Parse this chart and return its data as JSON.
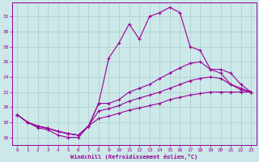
{
  "xlabel": "Windchill (Refroidissement éolien,°C)",
  "background_color": "#cce8e8",
  "grid_color": "#aacece",
  "line_color": "#990099",
  "xlim": [
    -0.5,
    23.5
  ],
  "ylim": [
    15.0,
    33.8
  ],
  "yticks": [
    16,
    18,
    20,
    22,
    24,
    26,
    28,
    30,
    32
  ],
  "xticks": [
    0,
    1,
    2,
    3,
    4,
    5,
    6,
    7,
    8,
    9,
    10,
    11,
    12,
    13,
    14,
    15,
    16,
    17,
    18,
    19,
    20,
    21,
    22,
    23
  ],
  "hours": [
    0,
    1,
    2,
    3,
    4,
    5,
    6,
    7,
    8,
    9,
    10,
    11,
    12,
    13,
    14,
    15,
    16,
    17,
    18,
    19,
    20,
    21,
    22,
    23
  ],
  "line1": [
    19.0,
    18.0,
    17.3,
    17.0,
    16.3,
    16.0,
    16.0,
    17.5,
    20.5,
    26.5,
    28.5,
    31.0,
    29.0,
    32.0,
    32.5,
    33.2,
    32.5,
    28.0,
    27.5,
    25.0,
    25.0,
    24.5,
    23.0,
    22.0
  ],
  "line2": [
    19.0,
    18.0,
    17.5,
    17.2,
    16.8,
    16.5,
    16.3,
    17.5,
    20.5,
    20.5,
    21.0,
    22.0,
    22.5,
    23.0,
    23.8,
    24.5,
    25.2,
    25.8,
    26.0,
    25.0,
    24.5,
    23.0,
    22.5,
    22.0
  ],
  "line3": [
    19.0,
    18.0,
    17.5,
    17.2,
    16.8,
    16.5,
    16.3,
    17.5,
    19.5,
    19.8,
    20.2,
    20.8,
    21.2,
    21.6,
    22.0,
    22.5,
    23.0,
    23.5,
    23.8,
    24.0,
    23.8,
    23.0,
    22.3,
    22.0
  ],
  "line4": [
    19.0,
    18.0,
    17.5,
    17.2,
    16.8,
    16.5,
    16.3,
    17.5,
    18.5,
    18.8,
    19.2,
    19.6,
    19.9,
    20.2,
    20.5,
    21.0,
    21.3,
    21.6,
    21.8,
    22.0,
    22.0,
    22.0,
    22.0,
    22.0
  ]
}
